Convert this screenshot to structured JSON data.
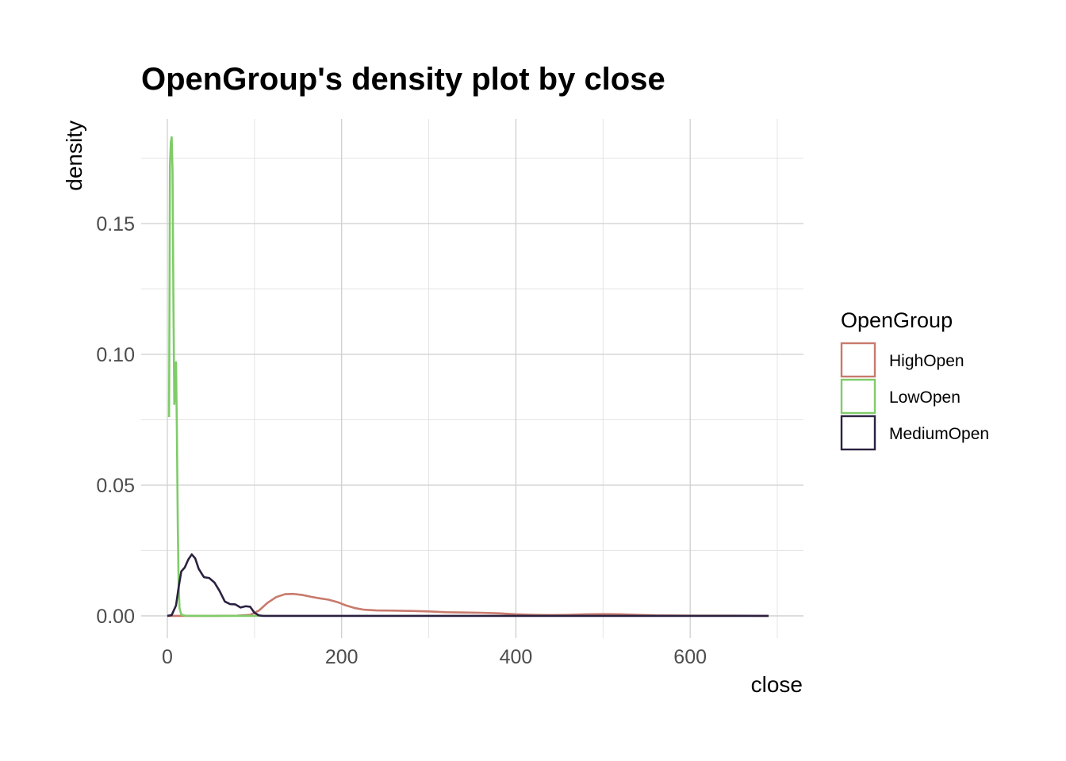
{
  "chart_data": {
    "type": "line",
    "title": "OpenGroup's density plot by close",
    "xlabel": "close",
    "ylabel": "density",
    "xlim": [
      -30,
      730
    ],
    "ylim": [
      -0.0085,
      0.19
    ],
    "x_ticks": [
      0,
      200,
      400,
      600
    ],
    "x_tick_labels": [
      "0",
      "200",
      "400",
      "600"
    ],
    "y_ticks": [
      0.0,
      0.05,
      0.1,
      0.15
    ],
    "y_tick_labels": [
      "0.00",
      "0.05",
      "0.10",
      "0.15"
    ],
    "x_minor": [
      100,
      300,
      500,
      700
    ],
    "y_minor": [
      0.025,
      0.075,
      0.125,
      0.175
    ],
    "grid": true,
    "legend": {
      "title": "OpenGroup",
      "placement": "right"
    },
    "series": [
      {
        "name": "HighOpen",
        "color": "#c87a6c",
        "points": [
          [
            0,
            0
          ],
          [
            50,
            0
          ],
          [
            80,
            0.0001
          ],
          [
            95,
            0.0004
          ],
          [
            105,
            0.002
          ],
          [
            115,
            0.005
          ],
          [
            125,
            0.0072
          ],
          [
            135,
            0.0083
          ],
          [
            145,
            0.0084
          ],
          [
            155,
            0.008
          ],
          [
            165,
            0.0073
          ],
          [
            175,
            0.0067
          ],
          [
            185,
            0.0062
          ],
          [
            195,
            0.0053
          ],
          [
            205,
            0.004
          ],
          [
            215,
            0.003
          ],
          [
            225,
            0.0024
          ],
          [
            240,
            0.0021
          ],
          [
            260,
            0.002
          ],
          [
            280,
            0.0019
          ],
          [
            300,
            0.0017
          ],
          [
            320,
            0.0014
          ],
          [
            340,
            0.0013
          ],
          [
            360,
            0.0012
          ],
          [
            380,
            0.001
          ],
          [
            400,
            0.0006
          ],
          [
            420,
            0.0004
          ],
          [
            440,
            0.0003
          ],
          [
            460,
            0.0004
          ],
          [
            480,
            0.0006
          ],
          [
            500,
            0.0007
          ],
          [
            520,
            0.0006
          ],
          [
            540,
            0.0004
          ],
          [
            560,
            0.0002
          ],
          [
            600,
            0.0001
          ],
          [
            650,
            0.0001
          ],
          [
            690,
            0.0
          ]
        ]
      },
      {
        "name": "LowOpen",
        "color": "#7fcc69",
        "points": [
          [
            2,
            0.076
          ],
          [
            2.5,
            0.12
          ],
          [
            3,
            0.172
          ],
          [
            4,
            0.181
          ],
          [
            5,
            0.183
          ],
          [
            6,
            0.17
          ],
          [
            7,
            0.12
          ],
          [
            8,
            0.081
          ],
          [
            9,
            0.089
          ],
          [
            10,
            0.097
          ],
          [
            11,
            0.07
          ],
          [
            12,
            0.035
          ],
          [
            13,
            0.012
          ],
          [
            14,
            0.003
          ],
          [
            16,
            0.0005
          ],
          [
            20,
            0.0001
          ],
          [
            40,
            0
          ],
          [
            80,
            0
          ],
          [
            105,
            0
          ]
        ]
      },
      {
        "name": "MediumOpen",
        "color": "#2b2140",
        "points": [
          [
            0,
            0
          ],
          [
            5,
            0.0003
          ],
          [
            10,
            0.004
          ],
          [
            13,
            0.011
          ],
          [
            16,
            0.017
          ],
          [
            20,
            0.0185
          ],
          [
            24,
            0.0215
          ],
          [
            28,
            0.0235
          ],
          [
            32,
            0.022
          ],
          [
            36,
            0.018
          ],
          [
            42,
            0.0148
          ],
          [
            48,
            0.0145
          ],
          [
            54,
            0.0128
          ],
          [
            60,
            0.0095
          ],
          [
            66,
            0.0055
          ],
          [
            72,
            0.0045
          ],
          [
            78,
            0.0044
          ],
          [
            84,
            0.0032
          ],
          [
            90,
            0.0037
          ],
          [
            95,
            0.0035
          ],
          [
            100,
            0.0012
          ],
          [
            105,
            0.0002
          ],
          [
            110,
            0.0
          ],
          [
            200,
            0
          ],
          [
            400,
            0
          ],
          [
            600,
            0
          ],
          [
            690,
            0
          ]
        ]
      }
    ]
  }
}
